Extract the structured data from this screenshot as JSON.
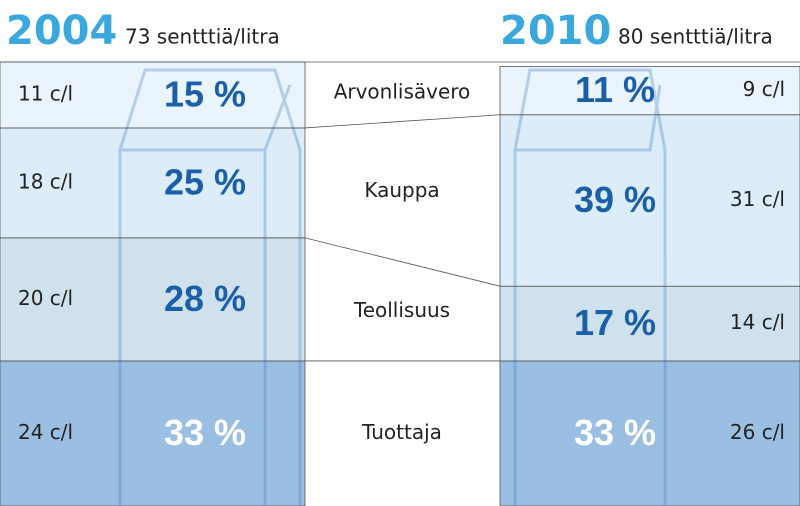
{
  "chart_data": {
    "type": "stacked-bar",
    "categories": [
      "2004",
      "2010"
    ],
    "subtitles": [
      "73 sentttiä/litra",
      "80 sentttiä/litra"
    ],
    "ylim": [
      0,
      101
    ],
    "series": [
      {
        "name": "Tuottaja",
        "color": "#9bbfe2",
        "label_color": "#ffffff",
        "values": [
          33,
          33
        ],
        "value_labels": [
          "33 %",
          "33 %"
        ],
        "cost_labels": [
          "24 c/l",
          "26 c/l"
        ]
      },
      {
        "name": "Teollisuus",
        "color": "#cfe1ec",
        "label_color": "#1a5fa8",
        "values": [
          28,
          17
        ],
        "value_labels": [
          "28 %",
          "17 %"
        ],
        "cost_labels": [
          "20 c/l",
          "14 c/l"
        ]
      },
      {
        "name": "Kauppa",
        "color": "#dcecf8",
        "label_color": "#1a5fa8",
        "values": [
          25,
          39
        ],
        "value_labels": [
          "25 %",
          "39 %"
        ],
        "cost_labels": [
          "18 c/l",
          "31 c/l"
        ]
      },
      {
        "name": "Arvonlisävero",
        "color": "#e9f4fc",
        "label_color": "#1a5fa8",
        "values": [
          15,
          11
        ],
        "value_labels": [
          "15 %",
          "11 %"
        ],
        "cost_labels": [
          "11 c/l",
          "9 c/l"
        ]
      }
    ]
  }
}
